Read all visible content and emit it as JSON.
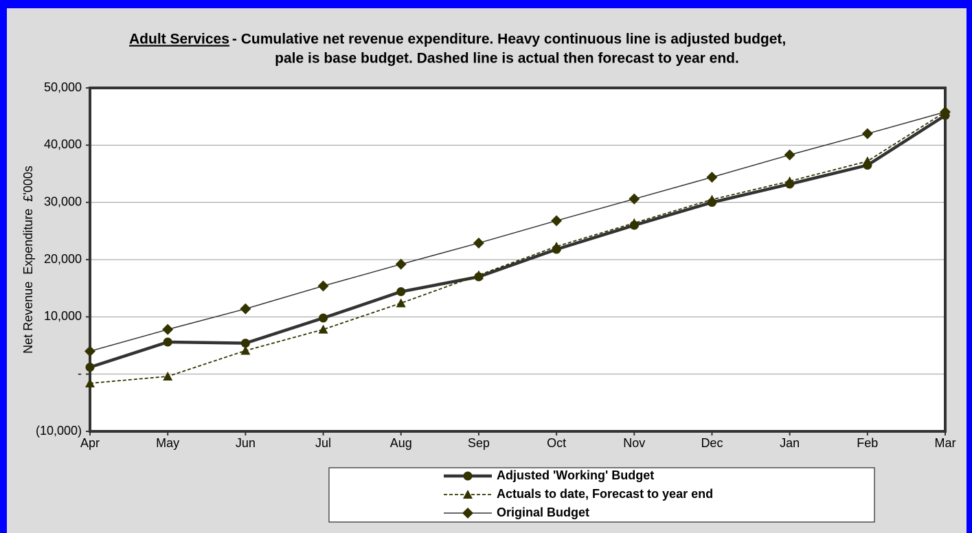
{
  "chart_data": {
    "type": "line",
    "title": [
      "Adult Services",
      "- Cumulative net revenue expenditure. Heavy continuous line is adjusted budget,",
      "pale is base budget. Dashed line is actual then forecast to year end."
    ],
    "y_label": "Net Revenue  Expenditure  £'000s",
    "categories": [
      "Apr",
      "May",
      "Jun",
      "Jul",
      "Aug",
      "Sep",
      "Oct",
      "Nov",
      "Dec",
      "Jan",
      "Feb",
      "Mar"
    ],
    "series": [
      {
        "name": "Adjusted 'Working' Budget",
        "color": "#333333",
        "marker": "circle",
        "style": "thick",
        "values": [
          1200,
          5600,
          5400,
          9800,
          14400,
          17000,
          21800,
          26000,
          30000,
          33200,
          36500,
          45200
        ]
      },
      {
        "name": "Actuals to date, Forecast to year end",
        "color": "#333300",
        "marker": "triangle",
        "style": "dashed",
        "values": [
          -1600,
          -400,
          4100,
          7800,
          12400,
          17300,
          22300,
          26400,
          30500,
          33700,
          37200,
          45800
        ]
      },
      {
        "name": "Original Budget",
        "color": "#333333",
        "marker": "diamond",
        "style": "thin",
        "values": [
          4000,
          7800,
          11400,
          15400,
          19200,
          22900,
          26800,
          30600,
          34400,
          38300,
          42000,
          45800
        ]
      }
    ],
    "ylim": [
      -10000,
      50000
    ],
    "yticks": [
      {
        "value": -10000,
        "label": "(10,000)"
      },
      {
        "value": 0,
        "label": "-"
      },
      {
        "value": 10000,
        "label": "10,000"
      },
      {
        "value": 20000,
        "label": "20,000"
      },
      {
        "value": 30000,
        "label": "30,000"
      },
      {
        "value": 40000,
        "label": "40,000"
      },
      {
        "value": 50000,
        "label": "50,000"
      }
    ],
    "grid": true
  }
}
